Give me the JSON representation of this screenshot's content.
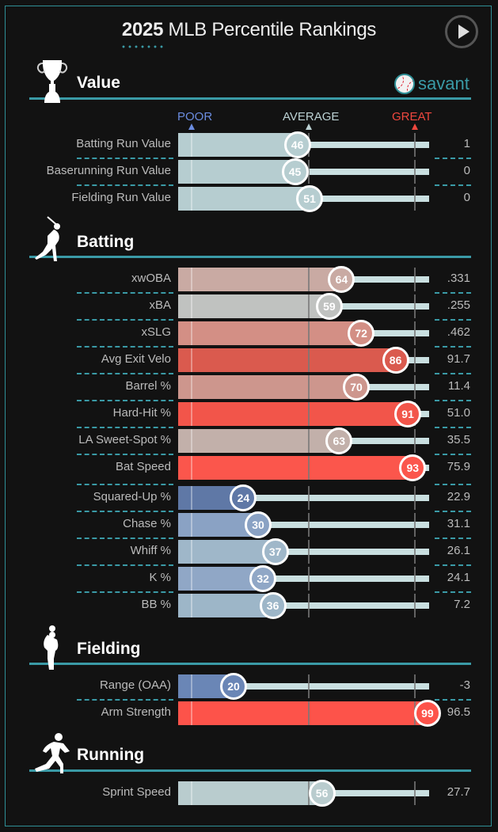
{
  "header": {
    "year": "2025",
    "title": "MLB Percentile Rankings",
    "play_button": "play-icon",
    "brand": "savant"
  },
  "scale": {
    "poor": "POOR",
    "average": "AVERAGE",
    "great": "GREAT",
    "colors": {
      "poor": "#5b7fd6",
      "average": "#bcd2d4",
      "great": "#e8423a"
    }
  },
  "sections": [
    {
      "title": "Value",
      "icon": "trophy-icon",
      "rows": [
        {
          "label": "Batting Run Value",
          "percentile": 46,
          "value": "1",
          "color": "#b6cdd0"
        },
        {
          "label": "Baserunning Run Value",
          "percentile": 45,
          "value": "0",
          "color": "#b6cdd0"
        },
        {
          "label": "Fielding Run Value",
          "percentile": 51,
          "value": "0",
          "color": "#b6cdd0"
        }
      ]
    },
    {
      "title": "Batting",
      "icon": "batter-icon",
      "rows": [
        {
          "label": "xwOBA",
          "percentile": 64,
          "value": ".331",
          "color": "#c9aaa3"
        },
        {
          "label": "xBA",
          "percentile": 59,
          "value": ".255",
          "color": "#c0c2c0"
        },
        {
          "label": "xSLG",
          "percentile": 72,
          "value": ".462",
          "color": "#d38f85"
        },
        {
          "label": "Avg Exit Velo",
          "percentile": 86,
          "value": "91.7",
          "color": "#da5a4e"
        },
        {
          "label": "Barrel %",
          "percentile": 70,
          "value": "11.4",
          "color": "#cd968d"
        },
        {
          "label": "Hard-Hit %",
          "percentile": 91,
          "value": "51.0",
          "color": "#f2554a"
        },
        {
          "label": "LA Sweet-Spot %",
          "percentile": 63,
          "value": "35.5",
          "color": "#c2b0aa"
        },
        {
          "label": "Bat Speed",
          "percentile": 93,
          "value": "75.9",
          "color": "#fb564c"
        },
        {
          "label": "Squared-Up %",
          "percentile": 24,
          "value": "22.9",
          "color": "#5f78a6"
        },
        {
          "label": "Chase %",
          "percentile": 30,
          "value": "31.1",
          "color": "#8aa2c4"
        },
        {
          "label": "Whiff %",
          "percentile": 37,
          "value": "26.1",
          "color": "#9fb7c9"
        },
        {
          "label": "K %",
          "percentile": 32,
          "value": "24.1",
          "color": "#90a7c6"
        },
        {
          "label": "BB %",
          "percentile": 36,
          "value": "7.2",
          "color": "#9db6c8"
        }
      ]
    },
    {
      "title": "Fielding",
      "icon": "fielder-icon",
      "rows": [
        {
          "label": "Range (OAA)",
          "percentile": 20,
          "value": "-3",
          "color": "#6a86b6"
        },
        {
          "label": "Arm Strength",
          "percentile": 99,
          "value": "96.5",
          "color": "#fd534a"
        }
      ]
    },
    {
      "title": "Running",
      "icon": "runner-icon",
      "rows": [
        {
          "label": "Sprint Speed",
          "percentile": 56,
          "value": "27.7",
          "color": "#b9ccce"
        }
      ]
    }
  ],
  "chart_data": {
    "type": "bar",
    "title": "2025 MLB Percentile Rankings",
    "xlabel": "Percentile",
    "ylabel": "",
    "xlim": [
      0,
      100
    ],
    "scale_labels": [
      "POOR",
      "AVERAGE",
      "GREAT"
    ],
    "categories": [
      "Batting Run Value",
      "Baserunning Run Value",
      "Fielding Run Value",
      "xwOBA",
      "xBA",
      "xSLG",
      "Avg Exit Velo",
      "Barrel %",
      "Hard-Hit %",
      "LA Sweet-Spot %",
      "Bat Speed",
      "Squared-Up %",
      "Chase %",
      "Whiff %",
      "K %",
      "BB %",
      "Range (OAA)",
      "Arm Strength",
      "Sprint Speed"
    ],
    "values": [
      46,
      45,
      51,
      64,
      59,
      72,
      86,
      70,
      91,
      63,
      93,
      24,
      30,
      37,
      32,
      36,
      20,
      99,
      56
    ]
  }
}
